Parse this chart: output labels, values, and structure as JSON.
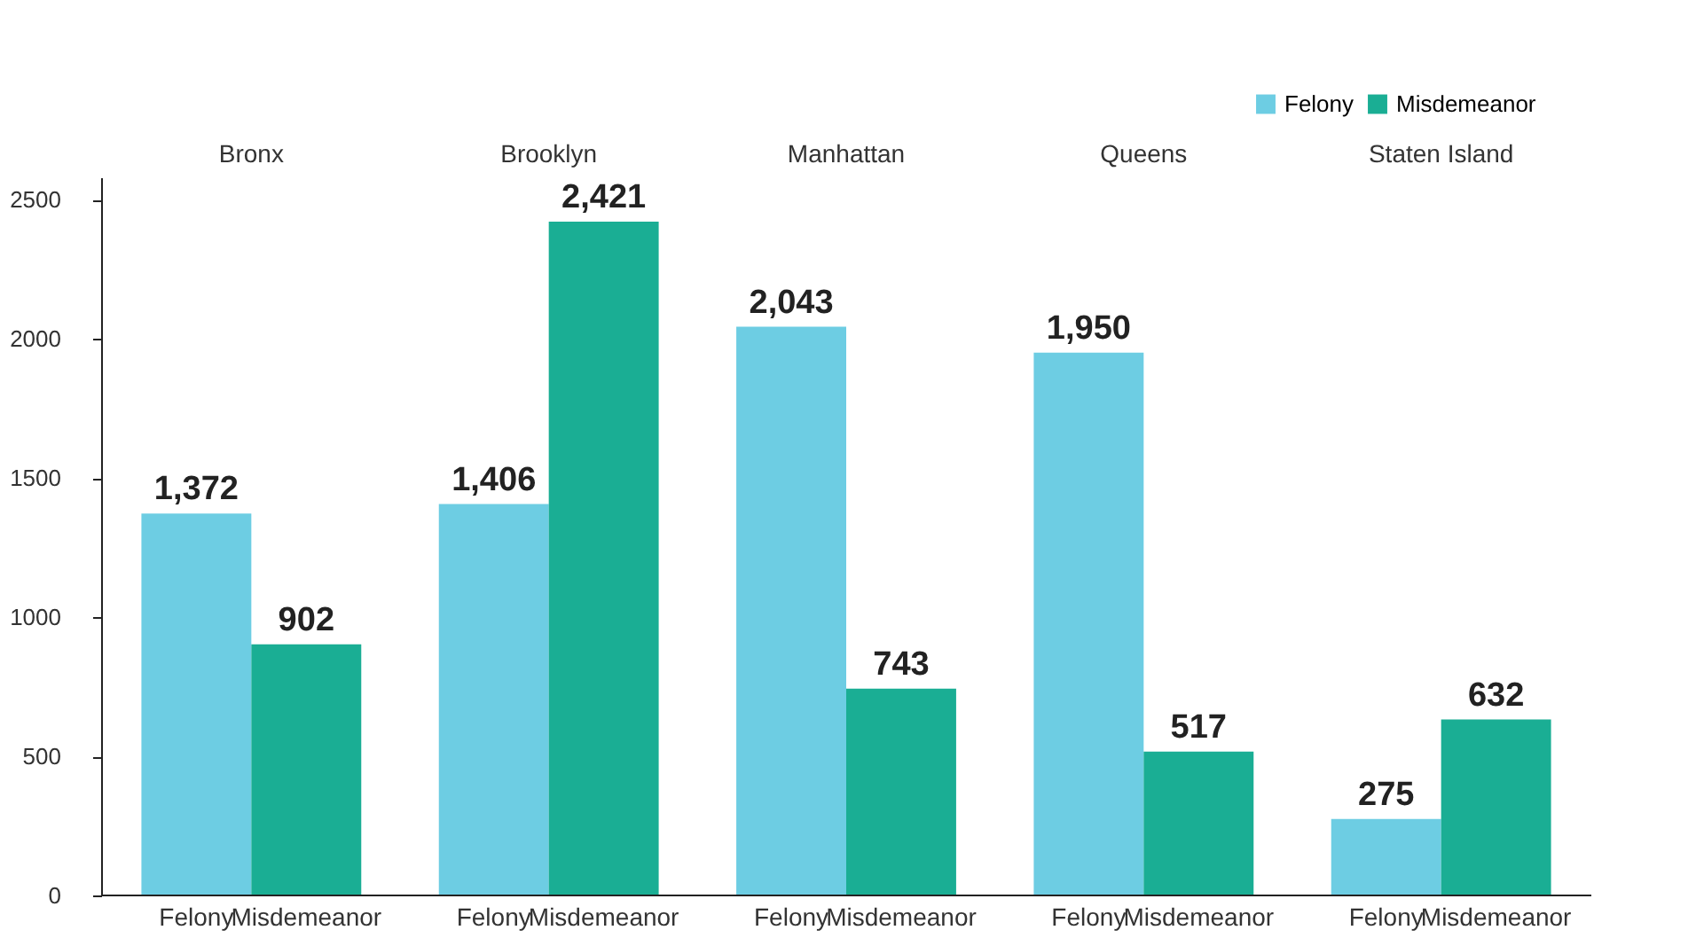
{
  "chart_data": {
    "type": "bar",
    "categories": [
      "Bronx",
      "Brooklyn",
      "Manhattan",
      "Queens",
      "Staten Island"
    ],
    "ylim": [
      0,
      2580
    ],
    "yticks": [
      0,
      500,
      1000,
      1500,
      2000,
      2500
    ],
    "grid": false,
    "legend": "top right",
    "series": [
      {
        "name": "Felony",
        "color": "#6dcde3",
        "values": [
          1372,
          1406,
          2043,
          1950,
          275
        ],
        "value_labels": [
          "1,372",
          "1,406",
          "2,043",
          "1,950",
          "275"
        ]
      },
      {
        "name": "Misdemeanor",
        "color": "#1aae94",
        "values": [
          902,
          2421,
          743,
          517,
          632
        ],
        "value_labels": [
          "902",
          "2,421",
          "743",
          "517",
          "632"
        ]
      }
    ]
  }
}
